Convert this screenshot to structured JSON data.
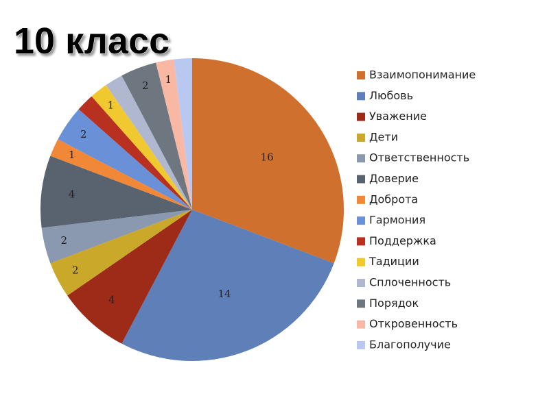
{
  "chart_data": {
    "type": "pie",
    "title": "10 класс",
    "categories": [
      "Взаимопонимание",
      "Любовь",
      "Уважение",
      "Дети",
      "Ответственность",
      "Доверие",
      "Доброта",
      "Гармония",
      "Поддержка",
      "Тадиции",
      "Сплоченность",
      "Порядок",
      "Откровенность",
      "Благополучие"
    ],
    "values": [
      16,
      14,
      4,
      2,
      2,
      4,
      1,
      2,
      1,
      1,
      1,
      2,
      1,
      1
    ],
    "value_labels": [
      "16",
      "14",
      "4",
      "2",
      "2",
      "4",
      "1",
      "2",
      null,
      "1",
      null,
      "2",
      "1",
      null
    ],
    "colors": [
      "#d0702e",
      "#5f7fb8",
      "#9e2a18",
      "#c9a82a",
      "#8a98b0",
      "#596370",
      "#f08838",
      "#6a90d8",
      "#b83020",
      "#f0c830",
      "#b0b8d0",
      "#6e7680",
      "#f8b8a4",
      "#b8c8f0"
    ],
    "legend": "right"
  }
}
